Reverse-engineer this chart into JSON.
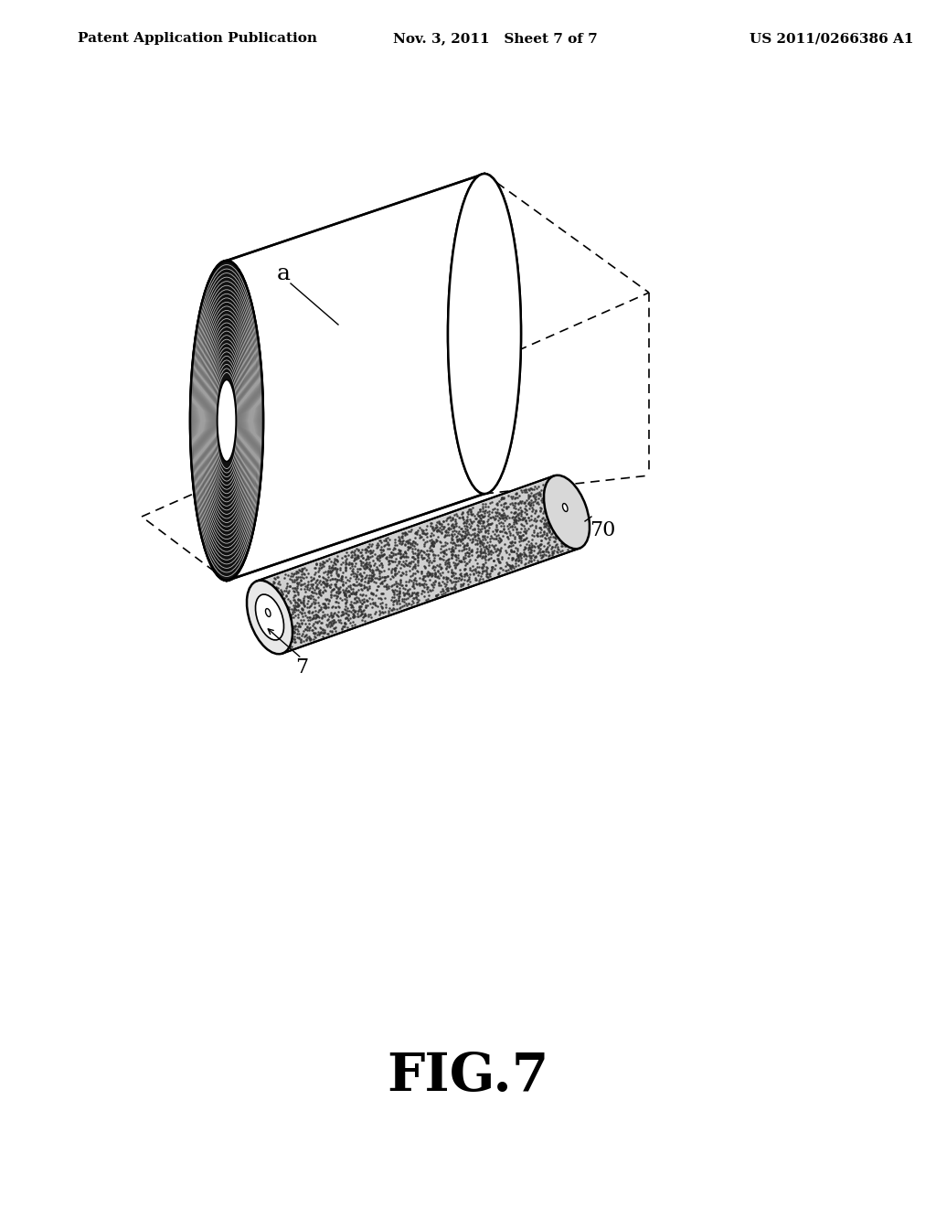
{
  "bg_color": "#ffffff",
  "header_left": "Patent Application Publication",
  "header_mid": "Nov. 3, 2011   Sheet 7 of 7",
  "header_right": "US 2011/0266386 A1",
  "fig_label": "FIG.7",
  "label_a": "a",
  "label_70": "70",
  "label_7": "7"
}
